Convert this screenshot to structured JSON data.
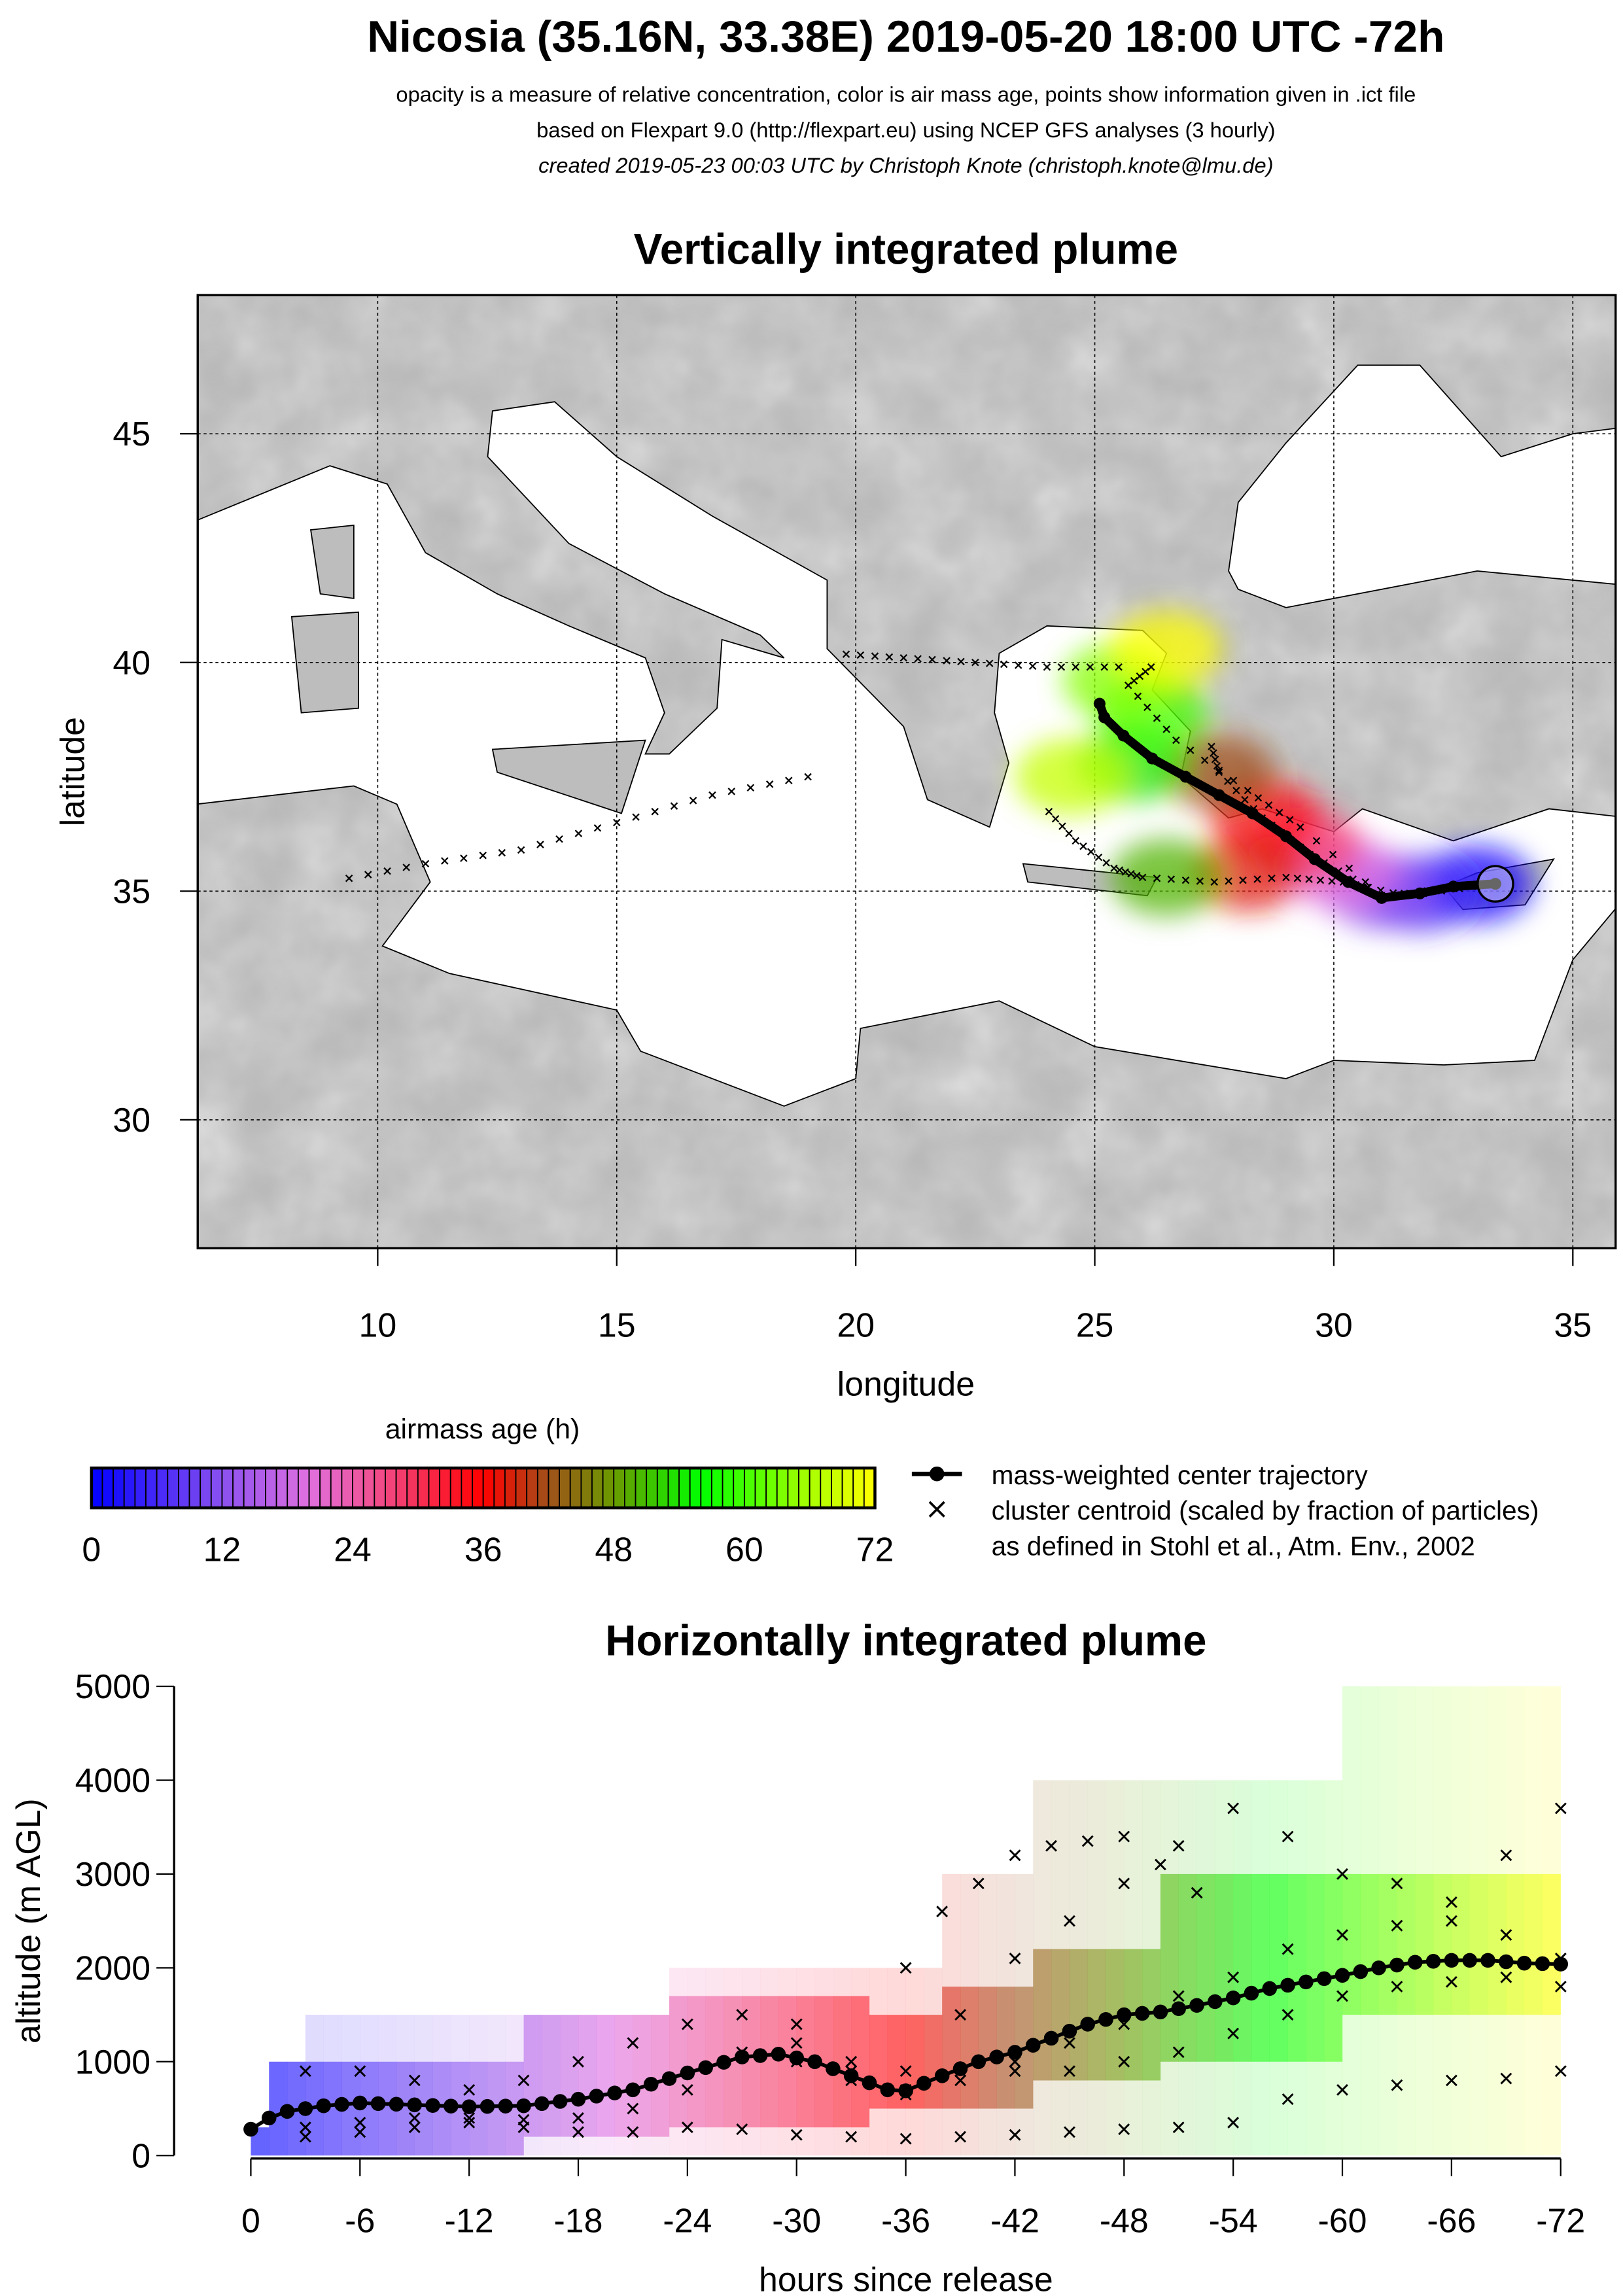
{
  "header": {
    "title": "Nicosia (35.16N, 33.38E) 2019-05-20 18:00 UTC -72h",
    "line1": "opacity is a measure of relative concentration, color is air mass age, points show information given in .ict file",
    "line2": "based on Flexpart 9.0 (http://flexpart.eu) using NCEP GFS analyses (3 hourly)",
    "line3": "created 2019-05-23 00:03 UTC by Christoph Knote (christoph.knote@lmu.de)"
  },
  "colors": {
    "age_stops": [
      [
        0,
        "#0000ff"
      ],
      [
        12,
        "#8a50f0"
      ],
      [
        20,
        "#e070e0"
      ],
      [
        26,
        "#f05090"
      ],
      [
        36,
        "#ff0000"
      ],
      [
        42,
        "#a0501a"
      ],
      [
        48,
        "#6a9a00"
      ],
      [
        56,
        "#00ff00"
      ],
      [
        66,
        "#a8ff00"
      ],
      [
        72,
        "#ffff00"
      ]
    ],
    "land": "#b4b4b4",
    "sea": "#ffffff"
  },
  "legend": {
    "colorbar_title": "airmass age (h)",
    "colorbar_ticks": [
      "0",
      "12",
      "24",
      "36",
      "48",
      "60",
      "72"
    ],
    "colorbar_tick_values": [
      0,
      12,
      24,
      36,
      48,
      60,
      72
    ],
    "center_label": "mass-weighted center trajectory",
    "cluster_label": "cluster centroid (scaled by fraction of particles)",
    "cluster_ref": "as defined in Stohl et al., Atm. Env., 2002"
  },
  "chart_data": [
    {
      "type": "scatter",
      "title": "Vertically integrated plume",
      "xlabel": "longitude",
      "ylabel": "latitude",
      "xlim": [
        6.2,
        35.9
      ],
      "ylim": [
        27.2,
        48.0
      ],
      "xticks": [
        10,
        15,
        20,
        25,
        30,
        35
      ],
      "xtick_labels": [
        "10",
        "15",
        "20",
        "25",
        "30",
        "35"
      ],
      "yticks": [
        30,
        35,
        40,
        45
      ],
      "ytick_labels": [
        "30",
        "35",
        "40",
        "45"
      ],
      "grid": true,
      "release_point": {
        "lon": 33.38,
        "lat": 35.16
      },
      "center_trajectory": [
        [
          33.38,
          35.16
        ],
        [
          32.5,
          35.1
        ],
        [
          31.8,
          34.95
        ],
        [
          31.0,
          34.85
        ],
        [
          30.3,
          35.2
        ],
        [
          29.6,
          35.7
        ],
        [
          29.0,
          36.2
        ],
        [
          28.3,
          36.7
        ],
        [
          27.6,
          37.1
        ],
        [
          26.9,
          37.5
        ],
        [
          26.2,
          37.9
        ],
        [
          25.6,
          38.4
        ],
        [
          25.2,
          38.8
        ],
        [
          25.1,
          39.1
        ]
      ],
      "clusters": [
        [
          [
            33.38,
            35.16
          ],
          [
            31.5,
            34.9
          ],
          [
            30.2,
            35.2
          ],
          [
            29.0,
            35.3
          ],
          [
            27.5,
            35.2
          ],
          [
            26.0,
            35.3
          ],
          [
            25.4,
            35.5
          ],
          [
            24.6,
            36.1
          ],
          [
            23.9,
            36.9
          ]
        ],
        [
          [
            33.38,
            35.16
          ],
          [
            31.0,
            34.9
          ],
          [
            29.5,
            35.8
          ],
          [
            28.5,
            36.6
          ],
          [
            27.6,
            37.6
          ],
          [
            27.4,
            38.3
          ]
        ],
        [
          [
            33.38,
            35.16
          ],
          [
            31.0,
            34.9
          ],
          [
            29.3,
            36.4
          ],
          [
            28.2,
            37.2
          ],
          [
            26.7,
            38.3
          ],
          [
            25.7,
            39.5
          ],
          [
            26.3,
            40.0
          ]
        ],
        [
          [
            25.5,
            39.9
          ],
          [
            24.0,
            39.9
          ],
          [
            22.5,
            40.0
          ],
          [
            21.0,
            40.1
          ],
          [
            19.5,
            40.2
          ]
        ],
        [
          [
            19.0,
            37.5
          ],
          [
            17.0,
            37.1
          ],
          [
            15.0,
            36.5
          ],
          [
            13.0,
            35.9
          ],
          [
            11.0,
            35.6
          ],
          [
            9.0,
            35.2
          ]
        ]
      ],
      "plume": [
        [
          33.0,
          35.15,
          1
        ],
        [
          31.8,
          34.95,
          6
        ],
        [
          31.0,
          35.0,
          12
        ],
        [
          30.2,
          35.4,
          20
        ],
        [
          29.4,
          36.0,
          28
        ],
        [
          28.6,
          36.6,
          34
        ],
        [
          28.2,
          35.4,
          38
        ],
        [
          27.6,
          37.6,
          42
        ],
        [
          26.5,
          35.3,
          50
        ],
        [
          25.8,
          37.8,
          54
        ],
        [
          26.2,
          38.9,
          60
        ],
        [
          25.5,
          39.6,
          64
        ],
        [
          24.5,
          37.5,
          68
        ],
        [
          26.5,
          40.3,
          72
        ]
      ]
    },
    {
      "type": "line",
      "title": "Horizontally integrated plume",
      "xlabel": "hours since release",
      "ylabel": "altitude (m AGL)",
      "xlim": [
        0,
        -72
      ],
      "ylim": [
        0,
        5000
      ],
      "xticks": [
        0,
        -6,
        -12,
        -18,
        -24,
        -30,
        -36,
        -42,
        -48,
        -54,
        -60,
        -66,
        -72
      ],
      "xtick_labels": [
        "0",
        "-6",
        "-12",
        "-18",
        "-24",
        "-30",
        "-36",
        "-42",
        "-48",
        "-54",
        "-60",
        "-66",
        "-72"
      ],
      "yticks": [
        0,
        1000,
        2000,
        3000,
        4000,
        5000
      ],
      "ytick_labels": [
        "0",
        "1000",
        "2000",
        "3000",
        "4000",
        "5000"
      ],
      "center": {
        "hours": [
          0,
          1,
          2,
          3,
          4,
          6,
          9,
          12,
          15,
          18,
          21,
          24,
          27,
          29,
          31,
          33,
          35,
          36,
          38,
          40,
          42,
          44,
          46,
          48,
          50,
          52,
          54,
          56,
          58,
          60,
          62,
          64,
          66,
          68,
          70,
          72
        ],
        "altitude": [
          280,
          400,
          470,
          500,
          530,
          560,
          540,
          520,
          530,
          600,
          700,
          880,
          1050,
          1080,
          1000,
          850,
          700,
          690,
          850,
          1000,
          1100,
          1250,
          1400,
          1500,
          1530,
          1600,
          1680,
          1780,
          1850,
          1920,
          2000,
          2060,
          2080,
          2080,
          2050,
          2040
        ]
      },
      "clusters": [
        {
          "hours": [
            3,
            6,
            9,
            12,
            15,
            18,
            21,
            24,
            27,
            30,
            33,
            36,
            39,
            42,
            45,
            48,
            51,
            54,
            57,
            60,
            63,
            66,
            69,
            72
          ],
          "altitude": [
            900,
            900,
            800,
            700,
            800,
            1000,
            1200,
            1400,
            1500,
            1400,
            1000,
            900,
            1500,
            2100,
            2500,
            2900,
            3300,
            3700,
            3400,
            3000,
            2900,
            2700,
            3200,
            3700
          ]
        },
        {
          "hours": [
            3,
            6,
            9,
            12,
            15,
            18,
            21,
            24,
            27,
            30,
            33,
            36,
            39,
            42,
            45,
            48,
            51,
            54,
            57,
            60,
            63,
            66,
            69,
            72
          ],
          "altitude": [
            300,
            350,
            400,
            400,
            380,
            400,
            500,
            700,
            1100,
            1200,
            900,
            700,
            800,
            900,
            1200,
            1400,
            1700,
            1900,
            2200,
            2350,
            2450,
            2500,
            2350,
            2100
          ]
        },
        {
          "hours": [
            3,
            6,
            9,
            12,
            15,
            18,
            21,
            24,
            27,
            30,
            33,
            36,
            39,
            42,
            45,
            48,
            51,
            54,
            57,
            60,
            63,
            66,
            69,
            72
          ],
          "altitude": [
            200,
            250,
            300,
            350,
            300,
            250,
            250,
            300,
            280,
            220,
            200,
            180,
            200,
            220,
            250,
            280,
            300,
            350,
            600,
            700,
            750,
            800,
            820,
            900
          ]
        },
        {
          "hours": [
            30,
            33,
            36,
            39,
            42,
            45,
            48,
            51,
            54,
            57,
            60,
            63,
            66,
            69,
            72
          ],
          "altitude": [
            1000,
            800,
            650,
            900,
            1000,
            900,
            1000,
            1100,
            1300,
            1500,
            1700,
            1800,
            1850,
            1900,
            1800
          ]
        },
        {
          "hours": [
            36,
            38,
            40,
            42,
            44,
            46,
            48,
            50,
            52
          ],
          "altitude": [
            2000,
            2600,
            2900,
            3200,
            3300,
            3350,
            3400,
            3100,
            2800
          ]
        }
      ],
      "bands": [
        [
          0,
          1,
          0,
          300,
          0,
          300
        ],
        [
          1,
          3,
          0,
          1000,
          0,
          1000
        ],
        [
          3,
          10,
          0,
          1000,
          0,
          1500
        ],
        [
          10,
          15,
          0,
          1000,
          0,
          1500
        ],
        [
          15,
          23,
          200,
          1500,
          0,
          1500
        ],
        [
          23,
          34,
          300,
          1700,
          0,
          2000
        ],
        [
          34,
          38,
          500,
          1500,
          0,
          2000
        ],
        [
          38,
          43,
          500,
          1800,
          0,
          3000
        ],
        [
          43,
          50,
          800,
          2200,
          0,
          4000
        ],
        [
          50,
          60,
          1000,
          3000,
          0,
          4000
        ],
        [
          60,
          72,
          1500,
          3000,
          0,
          5000
        ]
      ]
    }
  ]
}
